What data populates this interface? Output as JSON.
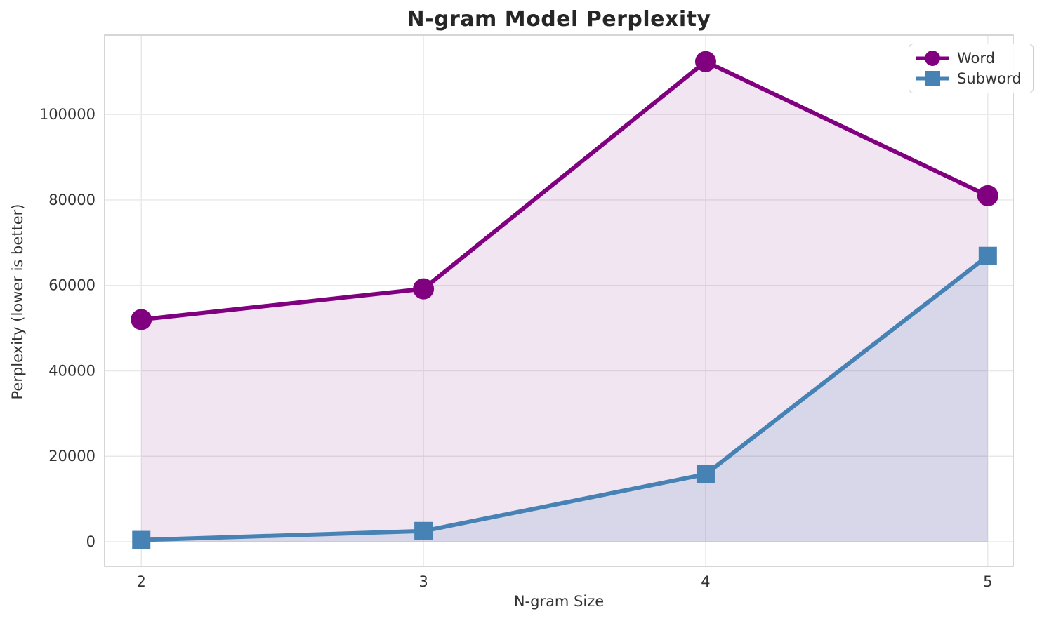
{
  "chart_data": {
    "type": "line",
    "title": "N-gram Model Perplexity",
    "xlabel": "N-gram Size",
    "ylabel": "Perplexity (lower is better)",
    "x": [
      2,
      3,
      4,
      5
    ],
    "xtick_labels": [
      "2",
      "3",
      "4",
      "5"
    ],
    "ytick_values": [
      0,
      20000,
      40000,
      60000,
      80000,
      100000
    ],
    "ytick_labels": [
      "0",
      "20000",
      "40000",
      "60000",
      "80000",
      "100000"
    ],
    "xlim": [
      1.87,
      5.09
    ],
    "ylim": [
      -5750,
      118600
    ],
    "grid": true,
    "legend_position": "upper right",
    "series": [
      {
        "name": "Word",
        "marker": "circle",
        "color": "#800080",
        "fill_alpha": 0.1,
        "values": [
          52000,
          59200,
          112400,
          81000
        ]
      },
      {
        "name": "Subword",
        "marker": "square",
        "color": "#4682B4",
        "fill_alpha": 0.15,
        "values": [
          400,
          2500,
          15800,
          66900
        ]
      }
    ],
    "colors": {
      "background": "#ffffff",
      "grid": "#e8e8e8",
      "spine": "#cccccc",
      "tick_text": "#333333",
      "title_text": "#262626"
    }
  }
}
